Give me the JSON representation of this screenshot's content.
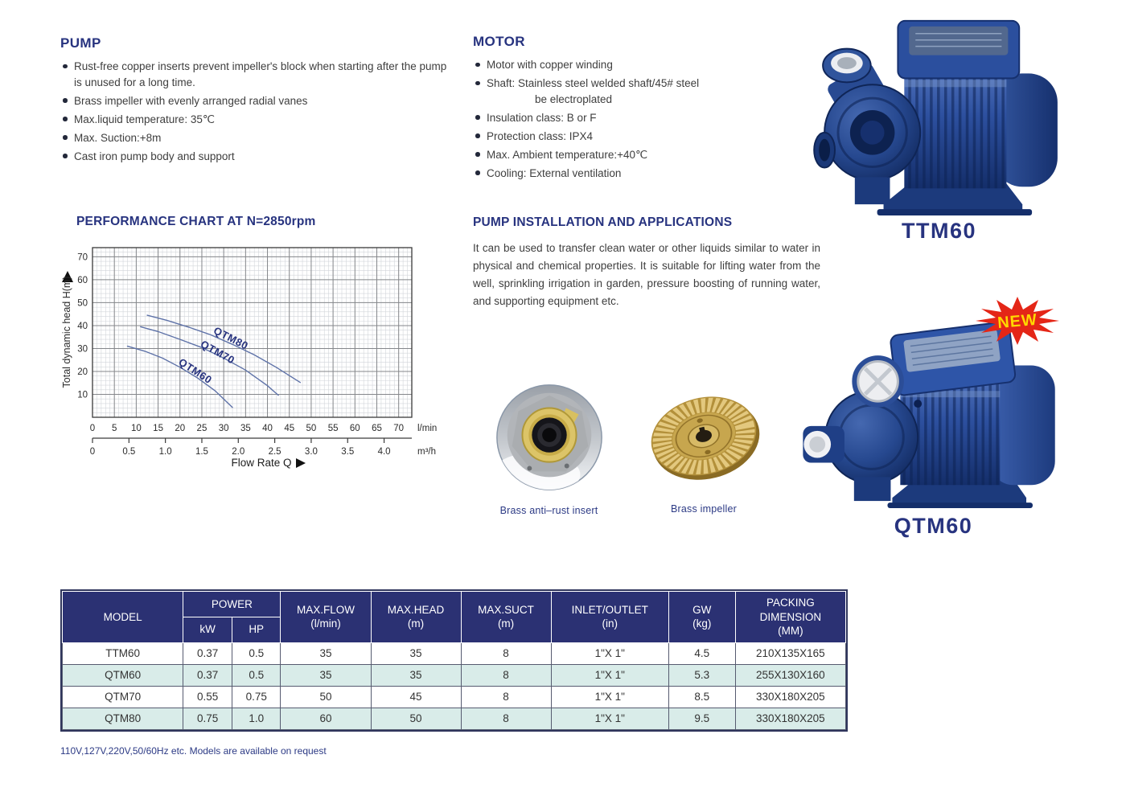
{
  "page": {
    "background": "#ffffff",
    "colors": {
      "accent_navy": "#27337f",
      "body_text": "#3e3e3e",
      "table_header_bg": "#2b3173",
      "table_alt_row_bg": "#d9ece9",
      "badge_red": "#e42617",
      "badge_text_yellow": "#ffd800",
      "pump_blue": "#2d509f",
      "brass_gold": "#c7a64e",
      "curve_blue": "#5e72a8"
    }
  },
  "pump_section": {
    "title": "PUMP",
    "bullets": [
      {
        "text": "Rust-free copper inserts prevent impeller's block when starting after the pump is unused for a long time."
      },
      {
        "text": "Brass impeller with evenly arranged radial vanes"
      },
      {
        "text": "Max.liquid temperature: 35℃"
      },
      {
        "text": "Max. Suction:+8m"
      },
      {
        "text": "Cast iron pump body and support"
      }
    ]
  },
  "motor_section": {
    "title": "MOTOR",
    "bullets": [
      {
        "text": "Motor with copper winding"
      },
      {
        "text": "Shaft:  Stainless steel welded shaft/45# steel",
        "cont": "be electroplated"
      },
      {
        "text": "Insulation class: B or F"
      },
      {
        "text": "Protection class: IPX4"
      },
      {
        "text": "Max. Ambient temperature:+40℃"
      },
      {
        "text": "Cooling: External ventilation"
      }
    ]
  },
  "products": {
    "ttm60_label": "TTM60",
    "qtm60_label": "QTM60",
    "new_badge": "NEW"
  },
  "installation": {
    "title": "PUMP INSTALLATION AND APPLICATIONS",
    "body": "It can be used to transfer clean water or other liquids similar to water in physical and chemical properties. It is suitable for lifting water from the well, sprinkling irrigation in garden, pressure boosting of running water, and supporting equipment etc."
  },
  "parts": {
    "insert_caption": "Brass anti–rust insert",
    "impeller_caption": "Brass impeller"
  },
  "spec_table": {
    "headers": {
      "model": "MODEL",
      "power": "POWER",
      "kw": "kW",
      "hp": "HP",
      "max_flow": "MAX.FLOW\n(l/min)",
      "max_head": "MAX.HEAD\n(m)",
      "max_suct": "MAX.SUCT\n(m)",
      "inlet_outlet": "INLET/OUTLET\n(in)",
      "gw": "GW\n(kg)",
      "packing": "PACKING\nDIMENSION\n(MM)"
    },
    "rows": [
      [
        "TTM60",
        "0.37",
        "0.5",
        "35",
        "35",
        "8",
        "1\"X 1\"",
        "4.5",
        "210X135X165"
      ],
      [
        "QTM60",
        "0.37",
        "0.5",
        "35",
        "35",
        "8",
        "1\"X 1\"",
        "5.3",
        "255X130X160"
      ],
      [
        "QTM70",
        "0.55",
        "0.75",
        "50",
        "45",
        "8",
        "1\"X 1\"",
        "8.5",
        "330X180X205"
      ],
      [
        "QTM80",
        "0.75",
        "1.0",
        "60",
        "50",
        "8",
        "1\"X 1\"",
        "9.5",
        "330X180X205"
      ]
    ]
  },
  "footnote": "110V,127V,220V,50/60Hz etc. Models are available on request",
  "chart_data": {
    "type": "line",
    "title": "PERFORMANCE CHART AT N=2850rpm",
    "ylabel": "Total dynamic head H(m)",
    "xlabel": "Flow Rate Q",
    "x_unit_primary": "l/min",
    "x_unit_secondary": "m³/h",
    "xlim": [
      0,
      73
    ],
    "ylim": [
      0,
      74
    ],
    "x_ticks_lmin": [
      0,
      5,
      10,
      15,
      20,
      25,
      30,
      35,
      40,
      45,
      50,
      55,
      60,
      65,
      70
    ],
    "x_ticks_m3h": [
      0,
      0.5,
      1.0,
      1.5,
      2.0,
      2.5,
      3.0,
      3.5,
      4.0
    ],
    "m3h_to_lmin": 16.667,
    "y_ticks": [
      10,
      20,
      30,
      40,
      50,
      60,
      70
    ],
    "grid": {
      "x_minor_step": 1,
      "y_minor_step": 2,
      "x_major_step": 5,
      "y_major_step": 10
    },
    "legend_position": "on-curve",
    "series": [
      {
        "name": "QTM80",
        "label_at": [
          27.5,
          36.8
        ],
        "label_angle": 27,
        "points": [
          [
            12.5,
            44.5
          ],
          [
            17,
            42.3
          ],
          [
            22,
            39.3
          ],
          [
            27,
            36
          ],
          [
            32,
            31.8
          ],
          [
            37,
            27.2
          ],
          [
            42,
            21.8
          ],
          [
            47.5,
            15.2
          ]
        ]
      },
      {
        "name": "QTM70",
        "label_at": [
          24.5,
          31.0
        ],
        "label_angle": 29,
        "points": [
          [
            11,
            39.5
          ],
          [
            15,
            37.4
          ],
          [
            20,
            34
          ],
          [
            25,
            30.4
          ],
          [
            30,
            25.8
          ],
          [
            35,
            20.6
          ],
          [
            40,
            13.8
          ],
          [
            42.5,
            9.6
          ]
        ]
      },
      {
        "name": "QTM60",
        "label_at": [
          19.5,
          23.3
        ],
        "label_angle": 33,
        "points": [
          [
            8,
            31
          ],
          [
            12,
            28.8
          ],
          [
            16,
            25.8
          ],
          [
            20,
            21.8
          ],
          [
            24,
            17.2
          ],
          [
            28,
            11.6
          ],
          [
            32,
            4.3
          ]
        ]
      }
    ]
  }
}
